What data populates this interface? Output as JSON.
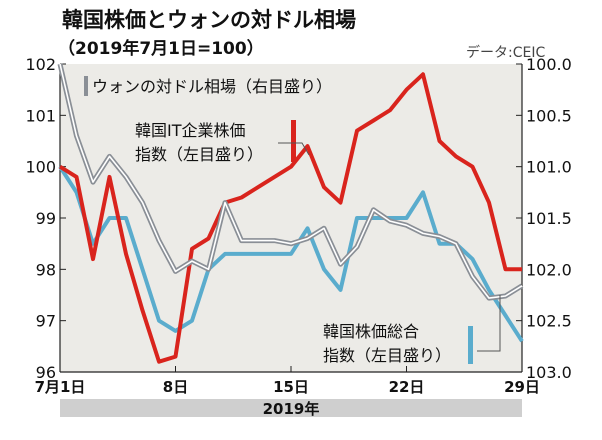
{
  "chart_data": {
    "type": "line",
    "title": "韓国株価とウォンの対ドル相場",
    "subtitle": "（2019年7月1日=100）",
    "source": "データ:CEIC",
    "x_tick_labels": [
      "7月1日",
      "8日",
      "15日",
      "22日",
      "29日"
    ],
    "x_tick_days": [
      1,
      8,
      15,
      22,
      29
    ],
    "x_band_label": "2019年",
    "x_range": [
      1,
      29
    ],
    "left_axis": {
      "ticks": [
        "102",
        "101",
        "100",
        "99",
        "98",
        "97",
        "96"
      ],
      "range": [
        96,
        102
      ]
    },
    "right_axis": {
      "ticks": [
        "100.0",
        "100.5",
        "101.0",
        "101.5",
        "102.0",
        "102.5",
        "103.0"
      ],
      "range": [
        100,
        103
      ],
      "inverted": true
    },
    "series": [
      {
        "name": "ウォンの対ドル相場（右目盛り）",
        "axis": "right",
        "color": "#8a8f96",
        "x": [
          1,
          2,
          3,
          4,
          5,
          6,
          7,
          8,
          9,
          10,
          11,
          12,
          13,
          14,
          15,
          16,
          17,
          18,
          19,
          20,
          21,
          22,
          23,
          24,
          25,
          26,
          27,
          28,
          29
        ],
        "values": [
          100.0,
          100.7,
          101.15,
          100.9,
          101.1,
          101.35,
          101.72,
          102.02,
          101.92,
          102.0,
          101.35,
          101.72,
          101.72,
          101.72,
          101.75,
          101.7,
          101.6,
          101.95,
          101.78,
          101.42,
          101.53,
          101.57,
          101.65,
          101.68,
          101.75,
          102.07,
          102.28,
          102.26,
          102.16
        ]
      },
      {
        "name": "韓国IT企業株価指数（左目盛り）",
        "axis": "left",
        "color": "#d9241d",
        "x": [
          1,
          2,
          3,
          4,
          5,
          6,
          7,
          8,
          9,
          10,
          11,
          12,
          13,
          14,
          15,
          16,
          17,
          18,
          19,
          20,
          21,
          22,
          23,
          24,
          25,
          26,
          27,
          28,
          29
        ],
        "values": [
          100.0,
          99.8,
          98.2,
          99.8,
          98.3,
          97.2,
          96.2,
          96.3,
          98.4,
          98.6,
          99.3,
          99.4,
          99.6,
          99.8,
          100.0,
          100.4,
          99.6,
          99.3,
          100.7,
          100.9,
          101.1,
          101.5,
          101.8,
          100.5,
          100.2,
          100.0,
          99.3,
          98.0,
          98.0
        ]
      },
      {
        "name": "韓国株価総合指数（左目盛り）",
        "axis": "left",
        "color": "#5aaccd",
        "x": [
          1,
          2,
          3,
          4,
          5,
          6,
          7,
          8,
          9,
          10,
          11,
          12,
          13,
          14,
          15,
          16,
          17,
          18,
          19,
          20,
          21,
          22,
          23,
          24,
          25,
          26,
          27,
          28,
          29
        ],
        "values": [
          100.0,
          99.5,
          98.5,
          99.0,
          99.0,
          98.0,
          97.0,
          96.8,
          97.0,
          98.0,
          98.3,
          98.3,
          98.3,
          98.3,
          98.3,
          98.8,
          98.0,
          97.6,
          99.0,
          99.0,
          99.0,
          99.0,
          99.5,
          98.5,
          98.5,
          98.2,
          97.6,
          97.1,
          96.6
        ]
      }
    ],
    "legend_labels": {
      "won": "ウォンの対ドル相場（右目盛り）",
      "it_line1": "韓国IT企業株価",
      "it_line2": "指数（左目盛り）",
      "kospi_line1": "韓国株価総合",
      "kospi_line2": "指数（左目盛り）"
    },
    "colors": {
      "plot_bg": "#ecebe7",
      "axis_band": "#cfcfcf"
    },
    "grid": false
  }
}
